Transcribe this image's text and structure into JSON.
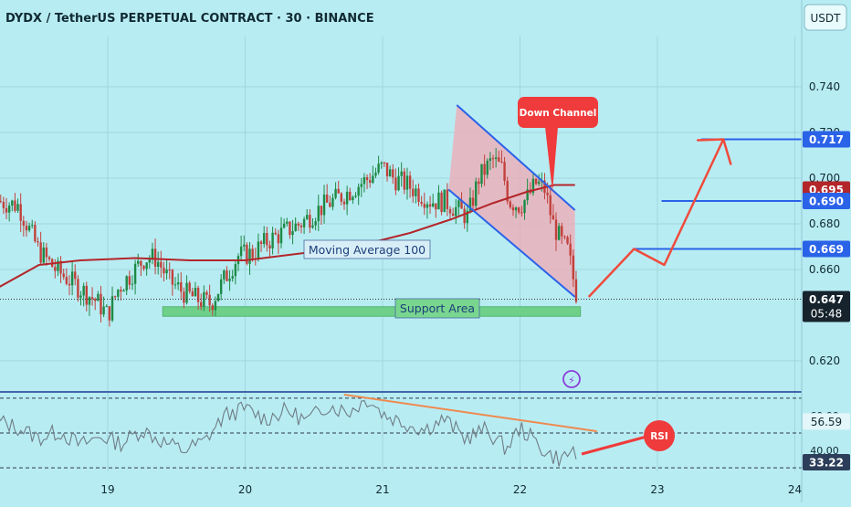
{
  "header": {
    "title": "DYDX / TetherUS PERPETUAL CONTRACT · 30 · BINANCE",
    "currency_button": "USDT"
  },
  "colors": {
    "background": "#b8ecf3",
    "up_candle": "#1c8a45",
    "down_candle": "#c2413b",
    "moving_average": "#b3262a",
    "channel": "#2a62e8",
    "channel_fill": "#f2a9b4",
    "support_fill": "#6ccf85",
    "projection": "#ef4b3c",
    "price_tag_blue": "#2a62e8",
    "price_tag_red": "#b3262a",
    "rsi_line": "#6f7d85",
    "rsi_trend": "#ee8a4f"
  },
  "annotations": {
    "down_channel": "Down Channel",
    "moving_average": "Moving Average 100",
    "support_area": "Support Area",
    "rsi": "RSI"
  },
  "chart_data": [
    {
      "type": "candlestick",
      "title": "DYDX / TetherUS PERPETUAL CONTRACT · 30 · BINANCE",
      "x_ticks": [
        "19",
        "20",
        "21",
        "22",
        "23",
        "24"
      ],
      "x_range_days": [
        18.2,
        24.0
      ],
      "price_ticks": [
        0.74,
        0.72,
        0.7,
        0.68,
        0.66,
        0.62
      ],
      "price_tick_labels": [
        "0.740",
        "0.720",
        "0.700",
        "0.680",
        "0.660",
        "0.620"
      ],
      "ylim": [
        0.608,
        0.762
      ],
      "current_price": 0.647,
      "current_price_label": "0.647",
      "countdown": "05:48",
      "grid": true,
      "close_path": [
        [
          18.2,
          0.69
        ],
        [
          18.35,
          0.688
        ],
        [
          18.5,
          0.668
        ],
        [
          18.62,
          0.66
        ],
        [
          18.75,
          0.654
        ],
        [
          18.92,
          0.646
        ],
        [
          19.0,
          0.64
        ],
        [
          19.08,
          0.652
        ],
        [
          19.17,
          0.658
        ],
        [
          19.27,
          0.665
        ],
        [
          19.35,
          0.665
        ],
        [
          19.45,
          0.655
        ],
        [
          19.55,
          0.65
        ],
        [
          19.65,
          0.647
        ],
        [
          19.75,
          0.645
        ],
        [
          19.85,
          0.656
        ],
        [
          19.95,
          0.666
        ],
        [
          20.05,
          0.667
        ],
        [
          20.15,
          0.672
        ],
        [
          20.27,
          0.676
        ],
        [
          20.4,
          0.68
        ],
        [
          20.55,
          0.687
        ],
        [
          20.75,
          0.694
        ],
        [
          20.9,
          0.7
        ],
        [
          21.0,
          0.705
        ],
        [
          21.08,
          0.7
        ],
        [
          21.18,
          0.697
        ],
        [
          21.28,
          0.693
        ],
        [
          21.35,
          0.69
        ],
        [
          21.45,
          0.69
        ],
        [
          21.55,
          0.686
        ],
        [
          21.62,
          0.683
        ],
        [
          21.7,
          0.7
        ],
        [
          21.8,
          0.708
        ],
        [
          21.87,
          0.704
        ],
        [
          21.92,
          0.69
        ],
        [
          22.0,
          0.688
        ],
        [
          22.06,
          0.692
        ],
        [
          22.12,
          0.698
        ],
        [
          22.18,
          0.695
        ],
        [
          22.24,
          0.68
        ],
        [
          22.3,
          0.672
        ],
        [
          22.35,
          0.668
        ],
        [
          22.4,
          0.652
        ],
        [
          22.42,
          0.647
        ]
      ],
      "moving_average_100": [
        [
          18.2,
          0.652
        ],
        [
          18.5,
          0.662
        ],
        [
          18.8,
          0.664
        ],
        [
          19.2,
          0.665
        ],
        [
          19.6,
          0.664
        ],
        [
          20.0,
          0.664
        ],
        [
          20.4,
          0.667
        ],
        [
          20.8,
          0.67
        ],
        [
          21.2,
          0.676
        ],
        [
          21.5,
          0.682
        ],
        [
          21.8,
          0.689
        ],
        [
          22.05,
          0.694
        ],
        [
          22.25,
          0.697
        ],
        [
          22.4,
          0.697
        ]
      ],
      "down_channel": {
        "upper": [
          [
            21.54,
            0.732
          ],
          [
            22.4,
            0.686
          ]
        ],
        "lower": [
          [
            21.48,
            0.695
          ],
          [
            22.4,
            0.648
          ]
        ]
      },
      "support_area": {
        "x_range": [
          19.4,
          22.44
        ],
        "price_range": [
          0.6395,
          0.6437
        ]
      },
      "projection_path": [
        [
          22.5,
          0.648
        ],
        [
          22.83,
          0.669
        ],
        [
          23.05,
          0.662
        ],
        [
          23.48,
          0.717
        ]
      ],
      "levels": [
        {
          "price": 0.717,
          "label": "0.717",
          "from_x": 23.32,
          "tag": "blue"
        },
        {
          "price": 0.695,
          "label": "0.695",
          "from_x": null,
          "tag": "red"
        },
        {
          "price": 0.69,
          "label": "0.690",
          "from_x": 23.03,
          "tag": "blue"
        },
        {
          "price": 0.669,
          "label": "0.669",
          "from_x": 22.82,
          "tag": "blue"
        }
      ]
    },
    {
      "type": "line",
      "title": "",
      "levels": [
        70,
        50,
        30
      ],
      "y_tick_labels": [
        "60.00",
        "40.00"
      ],
      "ylim": [
        28,
        72
      ],
      "current_value": 33.22,
      "current_value_label": "33.22",
      "secondary_value": 56.59,
      "secondary_value_label": "56.59",
      "rsi_path": [
        [
          18.2,
          57
        ],
        [
          18.35,
          53
        ],
        [
          18.5,
          47
        ],
        [
          18.65,
          51
        ],
        [
          18.8,
          43
        ],
        [
          18.95,
          48
        ],
        [
          19.1,
          44
        ],
        [
          19.25,
          52
        ],
        [
          19.4,
          45
        ],
        [
          19.55,
          40
        ],
        [
          19.7,
          45
        ],
        [
          19.85,
          60
        ],
        [
          20.0,
          64
        ],
        [
          20.15,
          58
        ],
        [
          20.3,
          63
        ],
        [
          20.45,
          57
        ],
        [
          20.6,
          66
        ],
        [
          20.75,
          62
        ],
        [
          20.9,
          70
        ],
        [
          21.0,
          61
        ],
        [
          21.15,
          56
        ],
        [
          21.3,
          52
        ],
        [
          21.45,
          58
        ],
        [
          21.6,
          47
        ],
        [
          21.75,
          52
        ],
        [
          21.9,
          41
        ],
        [
          22.0,
          53
        ],
        [
          22.1,
          46
        ],
        [
          22.2,
          38
        ],
        [
          22.3,
          35
        ],
        [
          22.4,
          41
        ],
        [
          22.42,
          34
        ]
      ],
      "trendline": [
        [
          20.72,
          72
        ],
        [
          22.56,
          51
        ]
      ]
    }
  ]
}
